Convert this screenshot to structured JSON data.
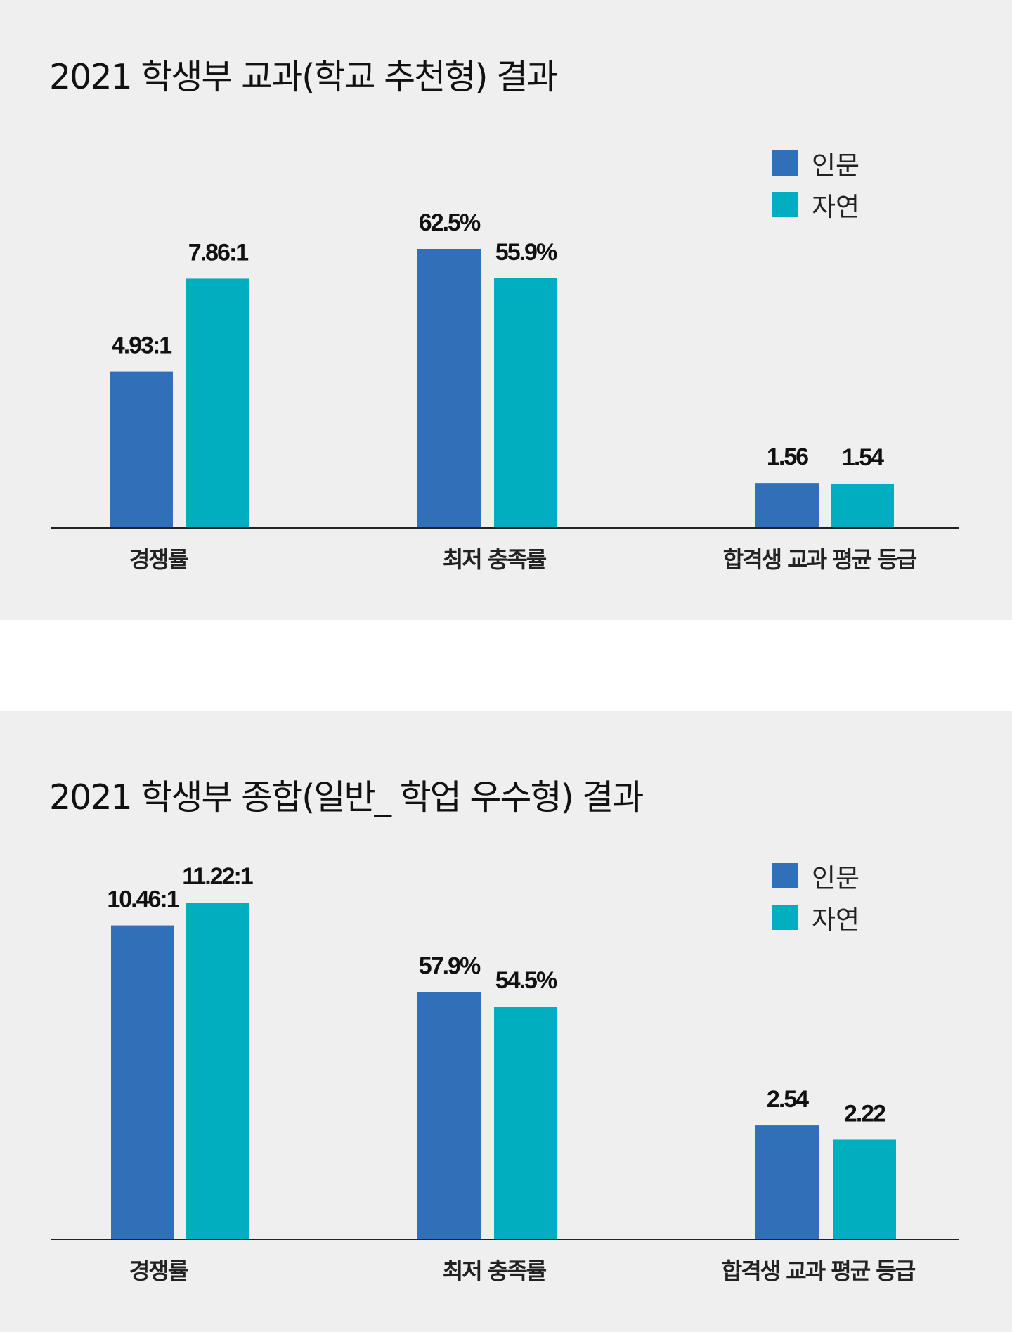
{
  "chart_data": [
    {
      "type": "bar",
      "title": "2021 학생부 교과(학교 추천형) 결과",
      "categories": [
        "경쟁률",
        "최저 충족률",
        "합격생 교과 평균 등급"
      ],
      "series": [
        {
          "name": "인문",
          "color": "#3170b8",
          "values": [
            4.93,
            62.5,
            1.56
          ],
          "labels": [
            "4.93:1",
            "62.5%",
            "1.56"
          ]
        },
        {
          "name": "자연",
          "color": "#00afbf",
          "values": [
            7.86,
            55.9,
            1.54
          ],
          "labels": [
            "7.86:1",
            "55.9%",
            "1.54"
          ]
        }
      ],
      "legend_position": "top-right",
      "grid": false,
      "note": "Each category is drawn on its own independent scale; no y-axis shown."
    },
    {
      "type": "bar",
      "title": "2021 학생부 종합(일반_ 학업 우수형) 결과",
      "categories": [
        "경쟁률",
        "최저 충족률",
        "합격생 교과 평균 등급"
      ],
      "series": [
        {
          "name": "인문",
          "color": "#3170b8",
          "values": [
            10.46,
            57.9,
            2.54
          ],
          "labels": [
            "10.46:1",
            "57.9%",
            "2.54"
          ]
        },
        {
          "name": "자연",
          "color": "#00afbf",
          "values": [
            11.22,
            54.5,
            2.22
          ],
          "labels": [
            "11.22:1",
            "54.5%",
            "2.22"
          ]
        }
      ],
      "legend_position": "top-right",
      "grid": false,
      "note": "Each category is drawn on its own independent scale; no y-axis shown."
    }
  ]
}
